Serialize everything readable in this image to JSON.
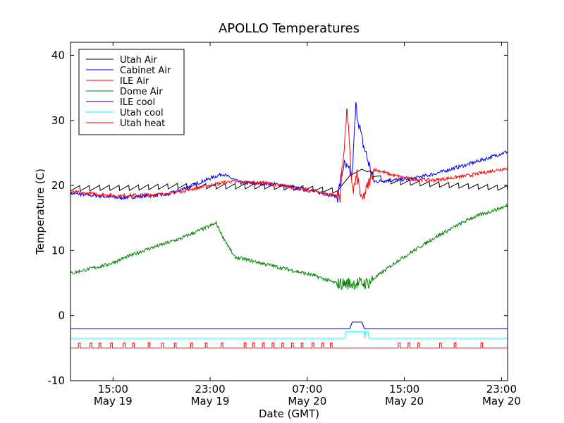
{
  "chart_data": {
    "type": "line",
    "title": "APOLLO Temperatures",
    "xlabel": "Date (GMT)",
    "ylabel": "Temperature (C)",
    "x_unit": "hours since 2011-05-19 11:30 GMT",
    "xlim": [
      0,
      36
    ],
    "ylim": [
      -10,
      42
    ],
    "grid": false,
    "legend_position": "top-left",
    "x_ticks": [
      {
        "x": 3.5,
        "time": "15:00",
        "date": "May 19"
      },
      {
        "x": 11.5,
        "time": "23:00",
        "date": "May 19"
      },
      {
        "x": 19.5,
        "time": "07:00",
        "date": "May 20"
      },
      {
        "x": 27.5,
        "time": "15:00",
        "date": "May 20"
      },
      {
        "x": 35.5,
        "time": "23:00",
        "date": "May 20"
      }
    ],
    "y_ticks": [
      {
        "value": 40,
        "label": "40"
      },
      {
        "value": 30,
        "label": "30"
      },
      {
        "value": 20,
        "label": "20"
      },
      {
        "value": 10,
        "label": "10"
      },
      {
        "value": 0,
        "label": "0"
      },
      {
        "value": -10,
        "label": "-10"
      }
    ],
    "series": [
      {
        "name": "Utah Air",
        "color": "#000000",
        "style": "sawtooth",
        "x": [
          0,
          5,
          9,
          12,
          16,
          20,
          22,
          23,
          24,
          26,
          30,
          34,
          36
        ],
        "values": [
          19.6,
          19.6,
          19.9,
          19.9,
          19.9,
          19.5,
          19.2,
          21.5,
          22.5,
          20.7,
          20.2,
          19.8,
          19.6
        ]
      },
      {
        "name": "Cabinet Air",
        "color": "#0000ff",
        "style": "noisy",
        "x": [
          0,
          4,
          8,
          12.5,
          14,
          17,
          22,
          22.5,
          23.2,
          23.5,
          24,
          25,
          28,
          30,
          33,
          36
        ],
        "values": [
          18.8,
          18.1,
          18.6,
          21.8,
          20.4,
          20.2,
          18.3,
          23.2,
          21.5,
          32.2,
          27.0,
          20.6,
          21.0,
          21.8,
          23.4,
          25.2
        ]
      },
      {
        "name": "ILE Air",
        "color": "#ff0000",
        "style": "noisy",
        "x": [
          0,
          4,
          8,
          13,
          16,
          20,
          22.2,
          22.4,
          22.8,
          23.1,
          23.3,
          23.6,
          24,
          25,
          26.5,
          28,
          30,
          33,
          36
        ],
        "values": [
          19.0,
          18.4,
          18.7,
          20.6,
          20.4,
          19.2,
          18.3,
          23.0,
          32.0,
          21.5,
          19.3,
          21.5,
          17.5,
          22.5,
          21.6,
          21.0,
          20.8,
          21.6,
          22.7
        ]
      },
      {
        "name": "Dome Air",
        "color": "#008000",
        "style": "noisy",
        "x": [
          0,
          3,
          6,
          9,
          12,
          12.5,
          13.5,
          15,
          17,
          20,
          22,
          24.5,
          27,
          30,
          33,
          36
        ],
        "values": [
          6.5,
          7.8,
          10.0,
          11.8,
          14.2,
          12.3,
          9.0,
          8.4,
          7.5,
          6.2,
          4.9,
          5.0,
          8.5,
          12.0,
          15.0,
          16.9
        ]
      },
      {
        "name": "ILE cool",
        "color": "#000080",
        "style": "step",
        "x": [
          0,
          23,
          23.2,
          24,
          24.2,
          36
        ],
        "values": [
          -2.0,
          -2.0,
          -1.0,
          -1.0,
          -2.0,
          -2.0
        ]
      },
      {
        "name": "Utah cool",
        "color": "#00ffff",
        "style": "step",
        "x": [
          0,
          22.6,
          22.7,
          24.2,
          24.25,
          24.3,
          24.5,
          24.6,
          36
        ],
        "values": [
          -3.5,
          -3.5,
          -2.5,
          -2.5,
          -3.5,
          -2.5,
          -2.5,
          -3.5,
          -3.5
        ]
      },
      {
        "name": "Utah heat",
        "color": "#ff0000",
        "style": "pulses",
        "baseline": -5.0,
        "pulse_level": -4.2,
        "pulse_width": 0.15,
        "pulse_starts": [
          0.65,
          1.6,
          2.35,
          3.3,
          4.35,
          5.1,
          6.4,
          7.5,
          8.55,
          9.9,
          11.1,
          12.4,
          14.3,
          15.0,
          15.8,
          16.6,
          17.4,
          18.2,
          19.0,
          19.9,
          20.7,
          21.4,
          27.0,
          27.8,
          28.6,
          30.4,
          31.6,
          33.8
        ]
      }
    ]
  }
}
